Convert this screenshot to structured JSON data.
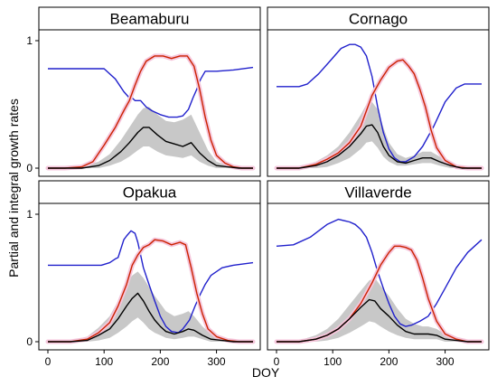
{
  "figure": {
    "ylabel": "Partial and integral growth rates",
    "xlabel": "DOY"
  },
  "chart_data": [
    {
      "type": "line",
      "panel": "Beamaburu",
      "xlim": [
        0,
        365
      ],
      "ylim": [
        0,
        1
      ],
      "xticks": [
        0,
        100,
        200,
        300
      ],
      "yticks": [
        0,
        1
      ],
      "series": [
        {
          "color": "#2020cc",
          "x": [
            0,
            60,
            100,
            120,
            135,
            145,
            150,
            155,
            165,
            175,
            185,
            200,
            215,
            230,
            240,
            250,
            258,
            265,
            272,
            280,
            300,
            330,
            365
          ],
          "y": [
            0.78,
            0.78,
            0.78,
            0.7,
            0.6,
            0.55,
            0.55,
            0.53,
            0.53,
            0.48,
            0.45,
            0.42,
            0.4,
            0.4,
            0.41,
            0.46,
            0.55,
            0.62,
            0.7,
            0.76,
            0.76,
            0.77,
            0.79
          ]
        },
        {
          "color": "#cc2200",
          "x": [
            0,
            30,
            60,
            80,
            100,
            120,
            135,
            145,
            155,
            165,
            175,
            190,
            205,
            220,
            235,
            248,
            260,
            270,
            280,
            290,
            300,
            315,
            330,
            345,
            365
          ],
          "y": [
            0.0,
            0.0,
            0.01,
            0.05,
            0.18,
            0.32,
            0.45,
            0.53,
            0.65,
            0.76,
            0.84,
            0.88,
            0.88,
            0.86,
            0.88,
            0.88,
            0.8,
            0.62,
            0.4,
            0.22,
            0.1,
            0.04,
            0.01,
            0.0,
            0.0
          ]
        },
        {
          "color": "#000000",
          "x": [
            0,
            60,
            90,
            110,
            130,
            145,
            160,
            170,
            180,
            195,
            210,
            225,
            240,
            255,
            270,
            285,
            300,
            320,
            340,
            365
          ],
          "y": [
            0.0,
            0.0,
            0.02,
            0.06,
            0.13,
            0.2,
            0.28,
            0.32,
            0.32,
            0.26,
            0.21,
            0.19,
            0.17,
            0.2,
            0.12,
            0.06,
            0.02,
            0.01,
            0.0,
            0.0
          ]
        },
        {
          "color": "#c8c8c8",
          "role": "band",
          "x": [
            0,
            60,
            90,
            110,
            130,
            145,
            160,
            170,
            180,
            195,
            210,
            225,
            240,
            255,
            270,
            285,
            300,
            320,
            340,
            365
          ],
          "lower": [
            0,
            0,
            0,
            0.02,
            0.05,
            0.09,
            0.14,
            0.17,
            0.17,
            0.13,
            0.1,
            0.09,
            0.08,
            0.1,
            0.05,
            0.02,
            0,
            0,
            0,
            0
          ],
          "upper": [
            0,
            0.01,
            0.05,
            0.11,
            0.22,
            0.32,
            0.42,
            0.47,
            0.48,
            0.42,
            0.37,
            0.36,
            0.38,
            0.42,
            0.28,
            0.14,
            0.05,
            0.02,
            0,
            0
          ]
        }
      ]
    },
    {
      "type": "line",
      "panel": "Cornago",
      "xlim": [
        0,
        365
      ],
      "ylim": [
        0,
        1
      ],
      "xticks": [
        0,
        100,
        200,
        300
      ],
      "yticks": [
        0,
        1
      ],
      "series": [
        {
          "color": "#2020cc",
          "x": [
            0,
            40,
            55,
            75,
            95,
            115,
            130,
            140,
            150,
            160,
            170,
            180,
            190,
            200,
            210,
            220,
            230,
            245,
            260,
            280,
            300,
            320,
            335,
            365
          ],
          "y": [
            0.64,
            0.64,
            0.66,
            0.74,
            0.84,
            0.94,
            0.97,
            0.97,
            0.95,
            0.88,
            0.72,
            0.48,
            0.28,
            0.15,
            0.08,
            0.05,
            0.05,
            0.09,
            0.17,
            0.33,
            0.52,
            0.63,
            0.66,
            0.66
          ]
        },
        {
          "color": "#cc2200",
          "x": [
            0,
            40,
            70,
            90,
            110,
            130,
            150,
            160,
            170,
            185,
            200,
            215,
            225,
            235,
            245,
            255,
            265,
            275,
            285,
            300,
            320,
            340,
            365
          ],
          "y": [
            0.0,
            0.0,
            0.03,
            0.07,
            0.12,
            0.2,
            0.33,
            0.45,
            0.57,
            0.69,
            0.79,
            0.84,
            0.85,
            0.8,
            0.74,
            0.62,
            0.48,
            0.3,
            0.16,
            0.06,
            0.01,
            0.0,
            0.0
          ]
        },
        {
          "color": "#000000",
          "x": [
            0,
            40,
            70,
            90,
            110,
            130,
            150,
            160,
            170,
            180,
            190,
            200,
            215,
            230,
            245,
            260,
            275,
            290,
            310,
            330,
            365
          ],
          "y": [
            0.0,
            0.0,
            0.02,
            0.05,
            0.1,
            0.17,
            0.27,
            0.33,
            0.34,
            0.28,
            0.17,
            0.1,
            0.05,
            0.04,
            0.06,
            0.08,
            0.08,
            0.05,
            0.02,
            0.0,
            0.0
          ]
        },
        {
          "color": "#c8c8c8",
          "role": "band",
          "x": [
            0,
            40,
            70,
            90,
            110,
            130,
            150,
            160,
            170,
            180,
            190,
            200,
            215,
            230,
            245,
            260,
            275,
            290,
            310,
            330,
            365
          ],
          "lower": [
            0,
            0,
            0,
            0.01,
            0.04,
            0.08,
            0.15,
            0.2,
            0.21,
            0.16,
            0.09,
            0.05,
            0.02,
            0.02,
            0.03,
            0.04,
            0.04,
            0.02,
            0,
            0,
            0
          ],
          "upper": [
            0,
            0.01,
            0.05,
            0.1,
            0.17,
            0.28,
            0.42,
            0.5,
            0.52,
            0.46,
            0.32,
            0.2,
            0.11,
            0.08,
            0.1,
            0.13,
            0.13,
            0.09,
            0.04,
            0.01,
            0
          ]
        }
      ]
    },
    {
      "type": "line",
      "panel": "Opakua",
      "xlim": [
        0,
        365
      ],
      "ylim": [
        0,
        1
      ],
      "xticks": [
        0,
        100,
        200,
        300
      ],
      "yticks": [
        0,
        1
      ],
      "series": [
        {
          "color": "#2020cc",
          "x": [
            0,
            60,
            95,
            110,
            120,
            125,
            135,
            140,
            148,
            155,
            160,
            165,
            170,
            180,
            190,
            200,
            210,
            220,
            232,
            240,
            252,
            262,
            272,
            280,
            290,
            310,
            330,
            365
          ],
          "y": [
            0.6,
            0.6,
            0.6,
            0.62,
            0.65,
            0.66,
            0.8,
            0.83,
            0.87,
            0.85,
            0.78,
            0.68,
            0.58,
            0.45,
            0.32,
            0.2,
            0.12,
            0.08,
            0.07,
            0.1,
            0.17,
            0.28,
            0.38,
            0.45,
            0.52,
            0.58,
            0.6,
            0.62
          ]
        },
        {
          "color": "#cc2200",
          "x": [
            0,
            40,
            70,
            90,
            110,
            125,
            140,
            150,
            160,
            170,
            180,
            190,
            205,
            220,
            235,
            245,
            255,
            265,
            275,
            285,
            300,
            320,
            340,
            365
          ],
          "y": [
            0.0,
            0.0,
            0.02,
            0.07,
            0.15,
            0.28,
            0.45,
            0.6,
            0.68,
            0.74,
            0.76,
            0.8,
            0.79,
            0.76,
            0.78,
            0.76,
            0.58,
            0.38,
            0.22,
            0.1,
            0.04,
            0.01,
            0.0,
            0.0
          ]
        },
        {
          "color": "#000000",
          "x": [
            0,
            40,
            70,
            90,
            110,
            125,
            140,
            150,
            160,
            170,
            180,
            190,
            200,
            210,
            225,
            240,
            250,
            260,
            275,
            290,
            310,
            330,
            365
          ],
          "y": [
            0.0,
            0.0,
            0.01,
            0.05,
            0.1,
            0.18,
            0.28,
            0.34,
            0.38,
            0.32,
            0.24,
            0.17,
            0.12,
            0.08,
            0.06,
            0.08,
            0.1,
            0.09,
            0.05,
            0.02,
            0.01,
            0.0,
            0.0
          ]
        },
        {
          "color": "#c8c8c8",
          "role": "band",
          "x": [
            0,
            40,
            70,
            90,
            110,
            125,
            140,
            150,
            160,
            170,
            180,
            190,
            200,
            210,
            225,
            240,
            250,
            260,
            275,
            290,
            310,
            330,
            365
          ],
          "lower": [
            0,
            0,
            0,
            0.01,
            0.03,
            0.07,
            0.12,
            0.16,
            0.19,
            0.15,
            0.1,
            0.07,
            0.05,
            0.03,
            0.02,
            0.03,
            0.04,
            0.04,
            0.02,
            0,
            0,
            0,
            0
          ],
          "upper": [
            0,
            0.01,
            0.04,
            0.11,
            0.2,
            0.32,
            0.46,
            0.52,
            0.55,
            0.5,
            0.43,
            0.36,
            0.3,
            0.24,
            0.2,
            0.22,
            0.24,
            0.2,
            0.12,
            0.06,
            0.02,
            0,
            0
          ]
        }
      ]
    },
    {
      "type": "line",
      "panel": "Villaverde",
      "xlim": [
        0,
        365
      ],
      "ylim": [
        0,
        1
      ],
      "xticks": [
        0,
        100,
        200,
        300
      ],
      "yticks": [
        0,
        1
      ],
      "series": [
        {
          "color": "#2020cc",
          "x": [
            0,
            30,
            60,
            90,
            110,
            130,
            140,
            150,
            160,
            170,
            180,
            190,
            200,
            210,
            220,
            230,
            240,
            255,
            270,
            285,
            300,
            320,
            340,
            355,
            365
          ],
          "y": [
            0.75,
            0.76,
            0.82,
            0.92,
            0.96,
            0.94,
            0.92,
            0.88,
            0.82,
            0.7,
            0.55,
            0.42,
            0.3,
            0.2,
            0.14,
            0.12,
            0.13,
            0.16,
            0.2,
            0.3,
            0.42,
            0.58,
            0.7,
            0.76,
            0.8
          ]
        },
        {
          "color": "#cc2200",
          "x": [
            0,
            40,
            70,
            90,
            110,
            130,
            150,
            170,
            185,
            200,
            210,
            220,
            230,
            240,
            250,
            260,
            270,
            285,
            300,
            320,
            340,
            365
          ],
          "y": [
            0.0,
            0.0,
            0.02,
            0.05,
            0.1,
            0.18,
            0.3,
            0.46,
            0.6,
            0.7,
            0.75,
            0.75,
            0.74,
            0.72,
            0.64,
            0.5,
            0.34,
            0.16,
            0.06,
            0.02,
            0.0,
            0.0
          ]
        },
        {
          "color": "#000000",
          "x": [
            0,
            40,
            70,
            90,
            110,
            130,
            150,
            165,
            175,
            185,
            200,
            215,
            230,
            245,
            260,
            270,
            285,
            300,
            320,
            340,
            365
          ],
          "y": [
            0.0,
            0.0,
            0.02,
            0.05,
            0.1,
            0.18,
            0.27,
            0.33,
            0.32,
            0.26,
            0.2,
            0.13,
            0.08,
            0.06,
            0.06,
            0.06,
            0.05,
            0.02,
            0.01,
            0.0,
            0.0
          ]
        },
        {
          "color": "#c8c8c8",
          "role": "band",
          "x": [
            0,
            40,
            70,
            90,
            110,
            130,
            150,
            165,
            175,
            185,
            200,
            215,
            230,
            245,
            260,
            270,
            285,
            300,
            320,
            340,
            365
          ],
          "lower": [
            0,
            0,
            0,
            0.01,
            0.03,
            0.07,
            0.12,
            0.16,
            0.15,
            0.12,
            0.08,
            0.05,
            0.03,
            0.02,
            0.02,
            0.02,
            0.02,
            0,
            0,
            0,
            0
          ],
          "upper": [
            0,
            0.01,
            0.05,
            0.1,
            0.18,
            0.29,
            0.4,
            0.48,
            0.5,
            0.44,
            0.36,
            0.26,
            0.18,
            0.14,
            0.12,
            0.12,
            0.1,
            0.06,
            0.02,
            0,
            0
          ]
        }
      ]
    }
  ]
}
